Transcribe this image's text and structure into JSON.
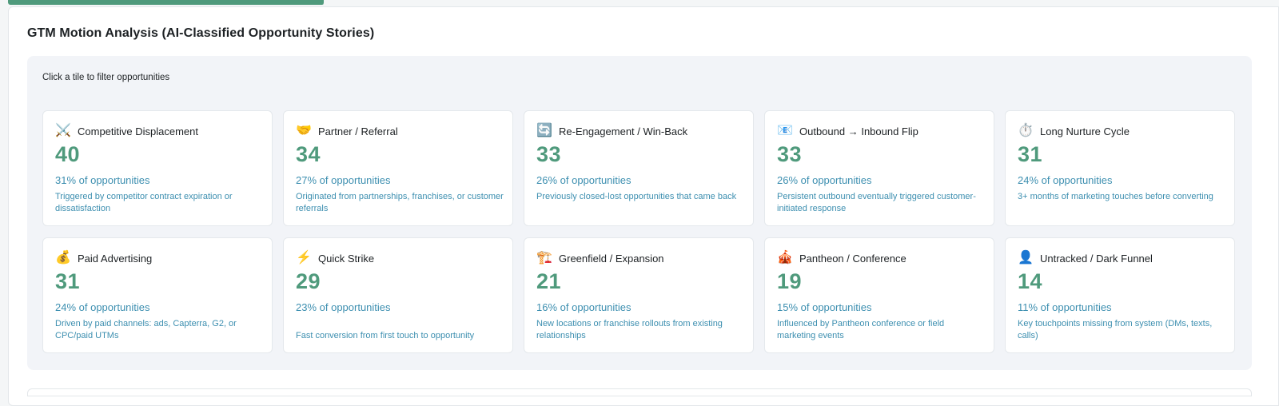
{
  "section": {
    "title": "GTM Motion Analysis (AI-Classified Opportunity Stories)",
    "hint": "Click a tile to filter opportunities"
  },
  "tiles": [
    {
      "icon": "⚔️",
      "icon_name": "crossed-swords-icon",
      "name": "Competitive Displacement",
      "count": "40",
      "pct": "31% of opportunities",
      "desc": "Triggered by competitor contract expiration or dissatisfaction"
    },
    {
      "icon": "🤝",
      "icon_name": "handshake-icon",
      "name": "Partner / Referral",
      "count": "34",
      "pct": "27% of opportunities",
      "desc": "Originated from partnerships, franchises, or customer referrals"
    },
    {
      "icon": "🔄",
      "icon_name": "refresh-icon",
      "name": "Re-Engagement / Win-Back",
      "count": "33",
      "pct": "26% of opportunities",
      "desc": "Previously closed-lost opportunities that came back"
    },
    {
      "icon": "📧",
      "icon_name": "email-icon",
      "name": "Outbound → Inbound Flip",
      "count": "33",
      "pct": "26% of opportunities",
      "desc": "Persistent outbound eventually triggered customer-initiated response"
    },
    {
      "icon": "⏱️",
      "icon_name": "stopwatch-icon",
      "name": "Long Nurture Cycle",
      "count": "31",
      "pct": "24% of opportunities",
      "desc": "3+ months of marketing touches before converting"
    },
    {
      "icon": "💰",
      "icon_name": "money-bag-icon",
      "name": "Paid Advertising",
      "count": "31",
      "pct": "24% of opportunities",
      "desc": "Driven by paid channels: ads, Capterra, G2, or CPC/paid UTMs"
    },
    {
      "icon": "⚡",
      "icon_name": "lightning-icon",
      "name": "Quick Strike",
      "count": "29",
      "pct": "23% of opportunities",
      "desc": "Fast conversion from first touch to opportunity"
    },
    {
      "icon": "🏗️",
      "icon_name": "crane-icon",
      "name": "Greenfield / Expansion",
      "count": "21",
      "pct": "16% of opportunities",
      "desc": "New locations or franchise rollouts from existing relationships"
    },
    {
      "icon": "🎪",
      "icon_name": "circus-tent-icon",
      "name": "Pantheon / Conference",
      "count": "19",
      "pct": "15% of opportunities",
      "desc": "Influenced by Pantheon conference or field marketing events"
    },
    {
      "icon": "👤",
      "icon_name": "person-silhouette-icon",
      "name": "Untracked / Dark Funnel",
      "count": "14",
      "pct": "11% of opportunities",
      "desc": "Key touchpoints missing from system (DMs, texts, calls)"
    }
  ]
}
